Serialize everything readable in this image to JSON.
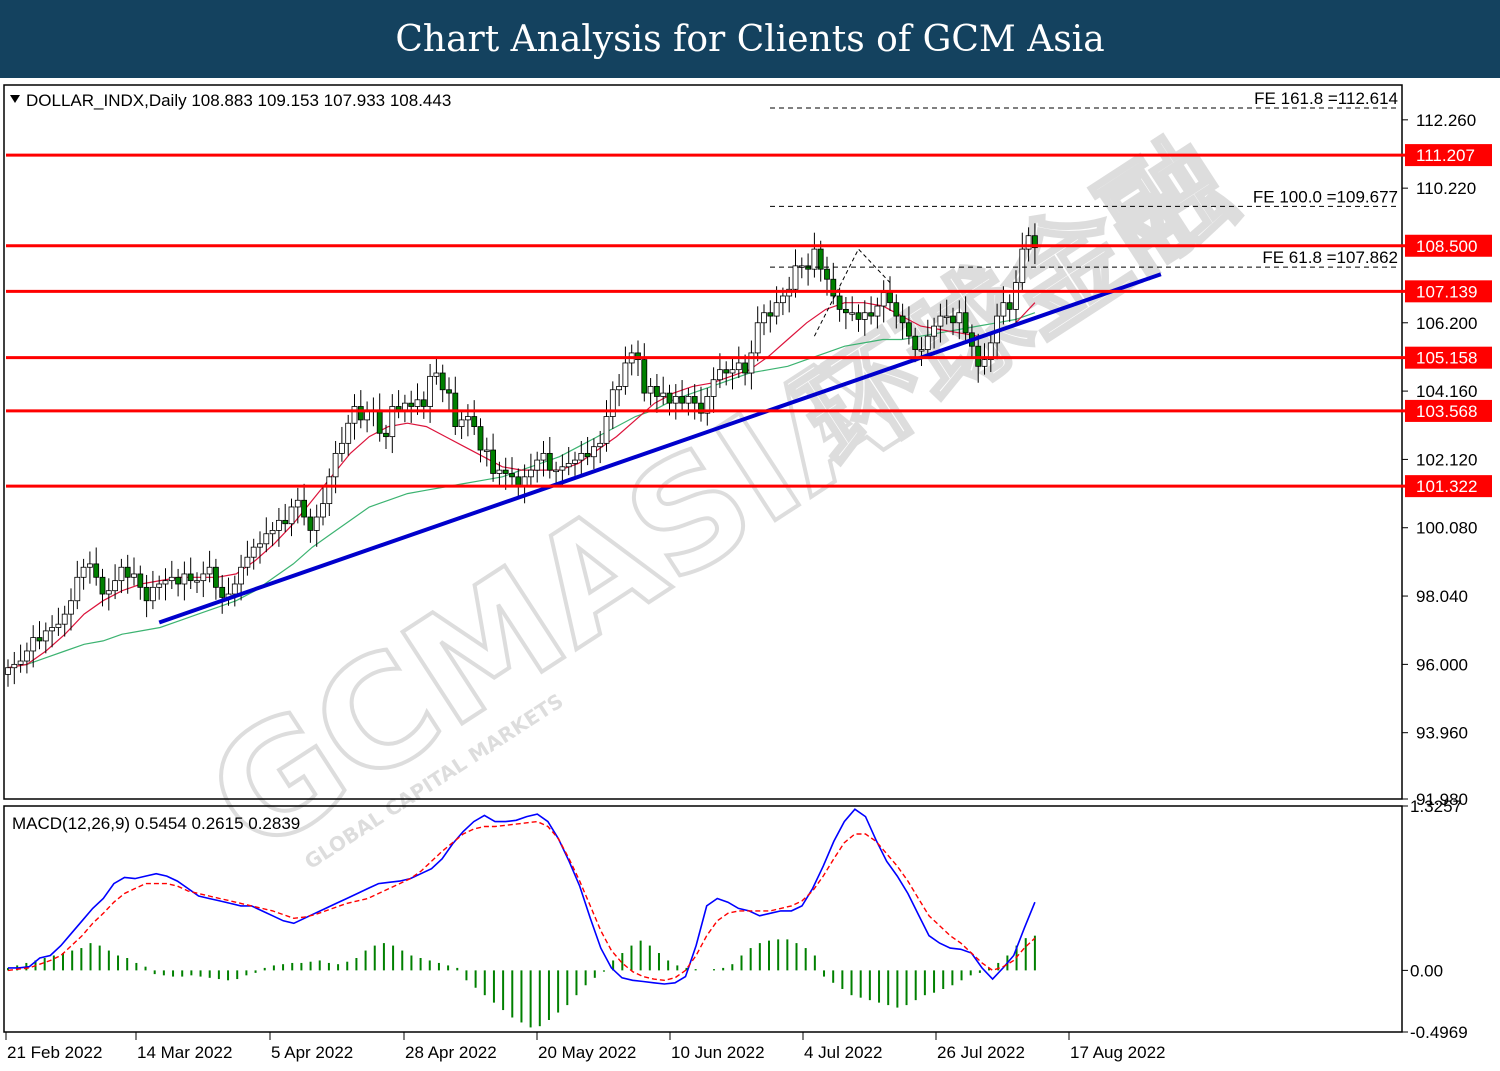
{
  "header": {
    "title": "Chart Analysis for Clients of GCM Asia"
  },
  "watermark": {
    "brand": "GCMASIA",
    "tagline": "GLOBAL CAPITAL MARKETS",
    "chinese": "环球金融"
  },
  "colors": {
    "banner": "#14425f",
    "support_resistance": "#ff0000",
    "trendline": "#0000cc",
    "ma_fast": "#dc143c",
    "ma_slow": "#3cb371",
    "macd": "#0000ff",
    "signal": "#ff0000",
    "histogram": "#008000",
    "candle_up": "#ffffff",
    "candle_down": "#008000"
  },
  "chart_data": [
    {
      "type": "candlestick",
      "symbol_line": "DOLLAR_INDX,Daily  108.883 109.153 107.933 108.443",
      "symbol": "DOLLAR_INDX",
      "timeframe": "Daily",
      "ohlc_last": {
        "open": 108.883,
        "high": 109.153,
        "low": 107.933,
        "close": 108.443
      },
      "ylim": [
        91.98,
        113.3
      ],
      "y_ticks": [
        "112.260",
        "110.220",
        "106.200",
        "104.160",
        "102.120",
        "100.080",
        "98.040",
        "96.000",
        "93.960",
        "91.980"
      ],
      "x_tick_labels": [
        "21 Feb 2022",
        "14 Mar 2022",
        "5 Apr 2022",
        "28 Apr 2022",
        "20 May 2022",
        "10 Jun 2022",
        "4 Jul 2022",
        "26 Jul 2022",
        "17 Aug 2022"
      ],
      "grid": false,
      "levels": [
        {
          "label": "111.207",
          "value": 111.207
        },
        {
          "label": "108.500",
          "value": 108.5
        },
        {
          "label": "107.139",
          "value": 107.139
        },
        {
          "label": "105.158",
          "value": 105.158
        },
        {
          "label": "103.568",
          "value": 103.568
        },
        {
          "label": "101.322",
          "value": 101.322
        }
      ],
      "fib_extensions": [
        {
          "label": "FE 161.8 =112.614",
          "value": 112.614
        },
        {
          "label": "FE 100.0 =109.677",
          "value": 109.677
        },
        {
          "label": "FE 61.8 =107.862",
          "value": 107.862
        }
      ],
      "trendline": {
        "start": {
          "bar": 24,
          "value": 97.25
        },
        "end": {
          "bar": 183,
          "value": 107.65
        }
      },
      "fe_zigzag": [
        {
          "bar": 128,
          "value": 105.8
        },
        {
          "bar": 135,
          "value": 108.4
        },
        {
          "bar": 140,
          "value": 107.4
        }
      ],
      "closes": [
        95.9,
        96.0,
        96.1,
        96.4,
        96.8,
        96.7,
        97.0,
        97.1,
        97.2,
        97.5,
        97.9,
        98.6,
        98.9,
        99.0,
        98.6,
        98.1,
        98.2,
        98.5,
        98.9,
        98.6,
        98.7,
        98.3,
        97.9,
        98.3,
        98.4,
        98.5,
        98.6,
        98.4,
        98.7,
        98.5,
        98.5,
        98.7,
        98.9,
        98.3,
        98.0,
        98.1,
        98.4,
        98.9,
        99.2,
        99.5,
        99.6,
        99.9,
        100.0,
        100.3,
        100.2,
        100.7,
        100.9,
        100.4,
        100.0,
        100.4,
        100.8,
        101.6,
        102.3,
        102.6,
        103.2,
        103.7,
        103.3,
        103.6,
        103.6,
        102.9,
        102.8,
        103.7,
        103.6,
        103.8,
        103.7,
        103.9,
        103.7,
        104.6,
        104.7,
        104.2,
        104.1,
        103.1,
        103.3,
        103.4,
        103.1,
        102.4,
        102.4,
        101.7,
        101.8,
        101.7,
        101.6,
        101.3,
        101.6,
        101.8,
        102.1,
        102.3,
        101.8,
        101.8,
        101.9,
        102.0,
        102.1,
        102.3,
        102.2,
        102.5,
        102.6,
        103.4,
        104.2,
        104.3,
        105.0,
        105.3,
        105.1,
        104.1,
        104.3,
        104.0,
        104.1,
        103.8,
        104.0,
        103.8,
        104.0,
        103.8,
        103.5,
        104.0,
        104.5,
        104.8,
        104.7,
        104.8,
        105.0,
        104.7,
        105.3,
        106.2,
        106.5,
        106.4,
        106.8,
        107.0,
        107.2,
        107.9,
        107.9,
        107.8,
        108.4,
        107.8,
        107.5,
        107.0,
        106.6,
        106.5,
        106.5,
        106.3,
        106.5,
        106.4,
        106.7,
        107.1,
        106.8,
        106.4,
        106.2,
        105.8,
        105.4,
        105.4,
        105.8,
        106.1,
        106.4,
        106.4,
        106.2,
        106.5,
        105.9,
        105.5,
        104.9,
        105.1,
        105.6,
        106.4,
        106.8,
        106.6,
        107.4,
        108.4,
        108.8,
        108.443
      ],
      "ma_fast": {
        "start_bar": 0,
        "values": [
          95.9,
          96.0,
          96.4,
          96.9,
          97.5,
          97.9,
          98.2,
          98.4,
          98.5,
          98.6,
          98.6,
          98.6,
          98.7,
          99.1,
          99.6,
          100.2,
          100.9,
          101.6,
          102.3,
          102.8,
          103.1,
          103.2,
          103.1,
          102.8,
          102.5,
          102.2,
          101.9,
          101.8,
          101.8,
          101.8,
          102.0,
          102.4,
          102.8,
          103.3,
          103.8,
          104.1,
          104.3,
          104.4,
          104.6,
          104.8,
          105.2,
          105.7,
          106.2,
          106.6,
          106.8,
          106.8,
          106.7,
          106.4,
          106.1,
          106.0,
          105.9,
          105.8,
          105.9,
          106.2,
          106.8
        ]
      },
      "ma_slow": {
        "start_bar": 0,
        "values": [
          95.9,
          96.0,
          96.2,
          96.4,
          96.6,
          96.7,
          96.9,
          97.0,
          97.1,
          97.3,
          97.5,
          97.7,
          97.9,
          98.2,
          98.6,
          99.0,
          99.5,
          99.9,
          100.3,
          100.7,
          100.9,
          101.1,
          101.2,
          101.3,
          101.4,
          101.5,
          101.6,
          101.8,
          102.0,
          102.2,
          102.5,
          102.8,
          103.1,
          103.4,
          103.6,
          103.9,
          104.1,
          104.3,
          104.5,
          104.7,
          104.8,
          104.9,
          105.1,
          105.3,
          105.5,
          105.6,
          105.7,
          105.7,
          105.8,
          105.9,
          106.0,
          106.1,
          106.2,
          106.3,
          106.5
        ]
      }
    },
    {
      "type": "line",
      "indicator_line": "MACD(12,26,9) 0.5454 0.2615 0.2839",
      "indicator": "MACD(12,26,9)",
      "readout": {
        "macd": 0.5454,
        "signal": 0.2615,
        "histogram": 0.2839
      },
      "ylim": [
        -0.4969,
        1.3257
      ],
      "y_ticks": [
        "1.3257",
        "0.00",
        "-0.4969"
      ],
      "series": [
        {
          "values": [
            0.02,
            0.02,
            0.03,
            0.1,
            0.12,
            0.2,
            0.3,
            0.4,
            0.5,
            0.58,
            0.7,
            0.75,
            0.74,
            0.76,
            0.78,
            0.76,
            0.72,
            0.66,
            0.6,
            0.58,
            0.56,
            0.54,
            0.52,
            0.52,
            0.48,
            0.44,
            0.4,
            0.38,
            0.42,
            0.46,
            0.5,
            0.54,
            0.58,
            0.62,
            0.66,
            0.7,
            0.71,
            0.72,
            0.74,
            0.78,
            0.82,
            0.9,
            1.02,
            1.12,
            1.2,
            1.25,
            1.2,
            1.2,
            1.21,
            1.24,
            1.26,
            1.2,
            1.06,
            0.88,
            0.68,
            0.42,
            0.18,
            0.02,
            -0.06,
            -0.08,
            -0.09,
            -0.1,
            -0.11,
            -0.1,
            -0.05,
            0.2,
            0.52,
            0.58,
            0.55,
            0.5,
            0.48,
            0.44,
            0.46,
            0.48,
            0.48,
            0.52,
            0.66,
            0.84,
            1.04,
            1.2,
            1.3,
            1.24,
            1.05,
            0.88,
            0.76,
            0.62,
            0.45,
            0.28,
            0.22,
            0.18,
            0.17,
            0.14,
            0.02,
            -0.07,
            0.02,
            0.12,
            0.34,
            0.55
          ]
        },
        {
          "values": [
            0.0,
            0.01,
            0.02,
            0.05,
            0.08,
            0.12,
            0.2,
            0.28,
            0.38,
            0.46,
            0.55,
            0.62,
            0.66,
            0.7,
            0.7,
            0.7,
            0.68,
            0.64,
            0.62,
            0.6,
            0.58,
            0.56,
            0.54,
            0.52,
            0.5,
            0.48,
            0.45,
            0.42,
            0.43,
            0.45,
            0.48,
            0.51,
            0.54,
            0.56,
            0.58,
            0.62,
            0.66,
            0.7,
            0.74,
            0.8,
            0.88,
            0.96,
            1.03,
            1.1,
            1.14,
            1.16,
            1.16,
            1.17,
            1.18,
            1.19,
            1.2,
            1.16,
            1.06,
            0.9,
            0.72,
            0.52,
            0.32,
            0.16,
            0.06,
            -0.01,
            -0.05,
            -0.07,
            -0.08,
            -0.06,
            0.0,
            0.12,
            0.28,
            0.4,
            0.46,
            0.48,
            0.48,
            0.48,
            0.48,
            0.5,
            0.52,
            0.56,
            0.64,
            0.76,
            0.9,
            1.03,
            1.1,
            1.1,
            1.04,
            0.94,
            0.84,
            0.72,
            0.58,
            0.44,
            0.36,
            0.28,
            0.22,
            0.14,
            0.06,
            0.0,
            0.03,
            0.08,
            0.18,
            0.26
          ]
        }
      ],
      "histogram": [
        0.02,
        0.04,
        0.06,
        0.08,
        0.1,
        0.12,
        0.14,
        0.16,
        0.18,
        0.22,
        0.2,
        0.16,
        0.12,
        0.1,
        0.06,
        0.03,
        -0.03,
        -0.04,
        -0.05,
        -0.05,
        -0.04,
        -0.05,
        -0.06,
        -0.07,
        -0.08,
        -0.07,
        -0.04,
        -0.02,
        0.02,
        0.04,
        0.05,
        0.06,
        0.06,
        0.07,
        0.08,
        0.06,
        0.05,
        0.07,
        0.1,
        0.16,
        0.2,
        0.22,
        0.2,
        0.16,
        0.12,
        0.1,
        0.08,
        0.06,
        0.04,
        0.02,
        -0.08,
        -0.14,
        -0.2,
        -0.26,
        -0.32,
        -0.38,
        -0.42,
        -0.46,
        -0.45,
        -0.4,
        -0.34,
        -0.28,
        -0.2,
        -0.12,
        -0.06,
        -0.01,
        0.08,
        0.14,
        0.2,
        0.24,
        0.2,
        0.14,
        0.08,
        0.04,
        0.02,
        0.01,
        0.0,
        0.01,
        0.02,
        0.05,
        0.12,
        0.18,
        0.22,
        0.24,
        0.25,
        0.25,
        0.22,
        0.18,
        0.12,
        -0.05,
        -0.1,
        -0.15,
        -0.2,
        -0.22,
        -0.24,
        -0.26,
        -0.28,
        -0.3,
        -0.28,
        -0.24,
        -0.2,
        -0.18,
        -0.15,
        -0.12,
        -0.08,
        -0.04,
        -0.02,
        0.02,
        0.06,
        0.12,
        0.2,
        0.26,
        0.28
      ]
    }
  ]
}
